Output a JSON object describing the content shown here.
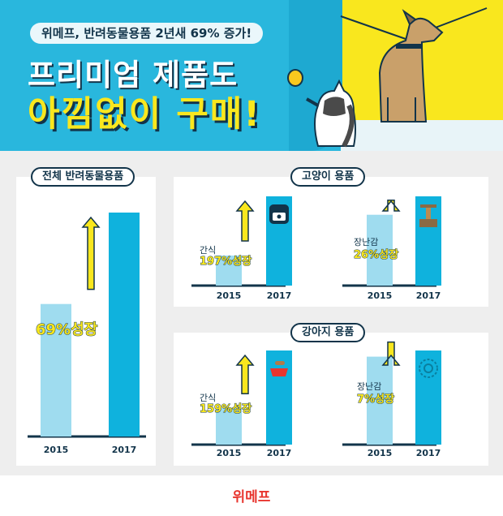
{
  "header": {
    "tagline": "위메프, 반려동물용품 2년새 69% 증가!",
    "title_line1": "프리미엄 제품도",
    "title_line2": "아낌없이 구매!"
  },
  "colors": {
    "hero_bg": "#29b7dd",
    "accent_yellow": "#f9e71e",
    "bar_2015": "#9fdcef",
    "bar_2017": "#0fb2dd",
    "navy": "#12344a",
    "brand_red": "#e8352e"
  },
  "panels": {
    "total": {
      "title": "전체 반려동물용품"
    },
    "cat": {
      "title": "고양이 용품"
    },
    "dog": {
      "title": "강아지 용품"
    }
  },
  "chart_data": [
    {
      "type": "bar",
      "title": "전체 반려동물용품",
      "categories": [
        "2015",
        "2017"
      ],
      "values": [
        100,
        169
      ],
      "annotation": {
        "value": "69%",
        "text": "성장"
      }
    },
    {
      "type": "bar",
      "title": "고양이 용품",
      "subtitle": "간식",
      "categories": [
        "2015",
        "2017"
      ],
      "values": [
        100,
        297
      ],
      "annotation": {
        "value": "197%",
        "text": "성장"
      },
      "icon": "cat-food-can-icon"
    },
    {
      "type": "bar",
      "title": "고양이 용품",
      "subtitle": "장난감",
      "categories": [
        "2015",
        "2017"
      ],
      "values": [
        100,
        126
      ],
      "annotation": {
        "value": "26%",
        "text": "성장"
      },
      "icon": "cat-tower-icon"
    },
    {
      "type": "bar",
      "title": "강아지 용품",
      "subtitle": "간식",
      "categories": [
        "2015",
        "2017"
      ],
      "values": [
        100,
        259
      ],
      "annotation": {
        "value": "159%",
        "text": "성장"
      },
      "icon": "dog-bowl-icon"
    },
    {
      "type": "bar",
      "title": "강아지 용품",
      "subtitle": "장난감",
      "categories": [
        "2015",
        "2017"
      ],
      "values": [
        100,
        107
      ],
      "annotation": {
        "value": "7%",
        "text": "성장"
      },
      "icon": "toy-ball-icon"
    }
  ],
  "footer": {
    "brand": "위메프"
  }
}
